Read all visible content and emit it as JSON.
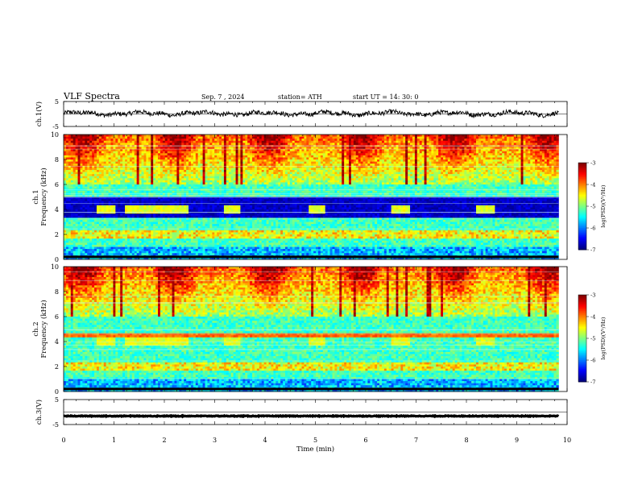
{
  "header": {
    "title": "VLF Spectra",
    "date": "Sep. 7 , 2024",
    "station": "station= ATH",
    "start_time": "start UT = 14: 30: 0"
  },
  "chart_data": [
    {
      "type": "line",
      "name": "ch1-waveform",
      "ylabel": "ch.1(V)",
      "ylim": [
        -5,
        5
      ],
      "yticks": [
        "5",
        "-5"
      ],
      "xlim": [
        0,
        10
      ],
      "x_end": 9.83,
      "baseline_v": 0.2,
      "noise_v": 0.9
    },
    {
      "type": "heatmap",
      "name": "ch1-spectrogram",
      "ylabel": "ch.1",
      "ylabel2": "Frequency  (kHz)",
      "ylim": [
        0,
        10
      ],
      "yticks": [
        "0",
        "2",
        "4",
        "6",
        "8",
        "10"
      ],
      "xlim": [
        0,
        10
      ],
      "x_end": 9.83,
      "bursts_min": [
        [
          0.65,
          1.05
        ],
        [
          1.2,
          2.5
        ],
        [
          3.2,
          3.5
        ],
        [
          4.85,
          5.2
        ],
        [
          6.5,
          6.9
        ],
        [
          8.2,
          8.55
        ]
      ],
      "dark_band_khz": [
        3.3,
        5.0
      ],
      "colorbar": {
        "label": "log(PSD)(V²/Hz)",
        "range": [
          -7,
          -3
        ],
        "ticks": [
          "-3",
          "-4",
          "-5",
          "-6",
          "-7"
        ]
      }
    },
    {
      "type": "heatmap",
      "name": "ch2-spectrogram",
      "ylabel": "ch.2",
      "ylabel2": "Frequency  (kHz)",
      "ylim": [
        0,
        10
      ],
      "yticks": [
        "0",
        "2",
        "4",
        "6",
        "8",
        "10"
      ],
      "xlim": [
        0,
        10
      ],
      "x_end": 9.83,
      "bursts_min": [
        [
          0.65,
          1.05
        ],
        [
          1.2,
          2.5
        ],
        [
          3.2,
          3.5
        ],
        [
          4.85,
          5.2
        ],
        [
          6.5,
          6.9
        ],
        [
          8.2,
          8.55
        ]
      ],
      "dark_band_khz": [],
      "colorbar": {
        "label": "log(PSD)(V²/Hz)",
        "range": [
          -7,
          -3
        ],
        "ticks": [
          "-3",
          "-4",
          "-5",
          "-6",
          "-7"
        ]
      }
    },
    {
      "type": "line",
      "name": "ch3-waveform",
      "ylabel": "ch.3(V)",
      "ylim": [
        -5,
        5
      ],
      "yticks": [
        "5",
        "-5"
      ],
      "xlim": [
        0,
        10
      ],
      "x_end": 9.83,
      "baseline_v": -1.6,
      "noise_v": 0.15,
      "xlabel": "Time  (min)",
      "xticks": [
        "0",
        "1",
        "2",
        "3",
        "4",
        "5",
        "6",
        "7",
        "8",
        "9",
        "10"
      ]
    }
  ]
}
